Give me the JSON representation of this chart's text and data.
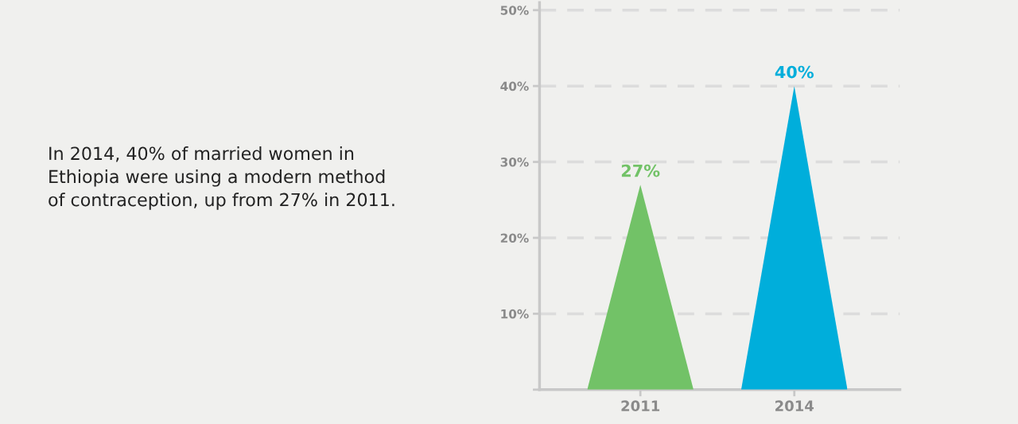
{
  "chart_data": {
    "type": "bar",
    "categories": [
      "2011",
      "2014"
    ],
    "values": [
      27,
      40
    ],
    "colors": [
      "#72c267",
      "#00aedb"
    ],
    "data_labels": true,
    "value_labels": [
      "27%",
      "40%"
    ],
    "ylim": [
      0,
      51
    ],
    "yticks": [
      {
        "value": 0,
        "label": null
      },
      {
        "value": 10,
        "label": "10%"
      },
      {
        "value": 20,
        "label": "20%"
      },
      {
        "value": 30,
        "label": "30%"
      },
      {
        "value": 40,
        "label": "40%"
      },
      {
        "value": 50,
        "label": "50%"
      }
    ],
    "grid": "y",
    "annotations": [
      "In 2014, 40% of married women in\nEthiopia were using a modern method\nof contraception, up from 27% in 2011."
    ]
  }
}
